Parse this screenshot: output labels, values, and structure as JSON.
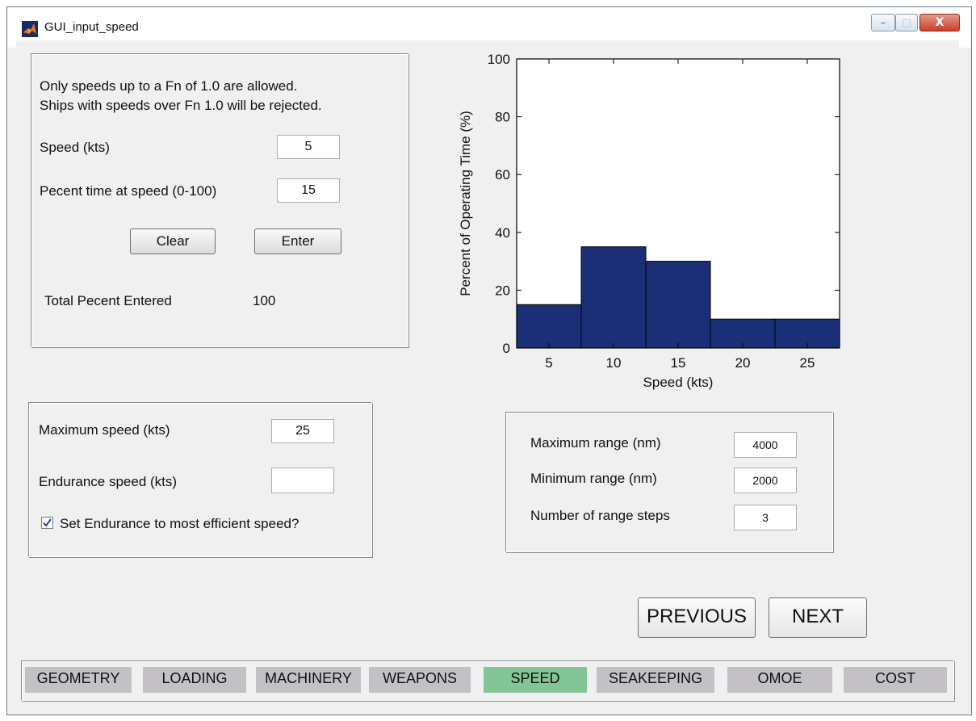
{
  "window": {
    "title": "GUI_input_speed",
    "min_glyph": "–",
    "max_glyph": "□",
    "close_glyph": "X"
  },
  "speed_panel": {
    "info_line1": "Only speeds up to a Fn of 1.0 are allowed.",
    "info_line2": "Ships with speeds over Fn 1.0 will be rejected.",
    "speed_label": "Speed (kts)",
    "speed_value": "5",
    "percent_label": "Pecent time at speed (0-100)",
    "percent_value": "15",
    "clear_label": "Clear",
    "enter_label": "Enter",
    "total_label": "Total Pecent Entered",
    "total_value": "100"
  },
  "endurance_panel": {
    "max_speed_label": "Maximum speed (kts)",
    "max_speed_value": "25",
    "endurance_label": "Endurance speed (kts)",
    "endurance_value": "",
    "checkbox_label": "Set Endurance to most efficient speed?",
    "checkbox_checked": true
  },
  "range_panel": {
    "max_range_label": "Maximum range (nm)",
    "max_range_value": "4000",
    "min_range_label": "Minimum range (nm)",
    "min_range_value": "2000",
    "steps_label": "Number of range steps",
    "steps_value": "3"
  },
  "nav": {
    "previous_label": "PREVIOUS",
    "next_label": "NEXT"
  },
  "tabs": [
    {
      "label": "GEOMETRY",
      "active": false
    },
    {
      "label": "LOADING",
      "active": false
    },
    {
      "label": "MACHINERY",
      "active": false
    },
    {
      "label": "WEAPONS",
      "active": false
    },
    {
      "label": "SPEED",
      "active": true
    },
    {
      "label": "SEAKEEPING",
      "active": false
    },
    {
      "label": "OMOE",
      "active": false
    },
    {
      "label": "COST",
      "active": false
    }
  ],
  "colors": {
    "bar_fill": "#1b2f77",
    "active_tab": "#83c596",
    "inactive_tab": "#c3c0c6"
  },
  "chart_data": {
    "type": "bar",
    "x": [
      5,
      10,
      15,
      20,
      25
    ],
    "values": [
      15,
      35,
      30,
      10,
      10
    ],
    "xlabel": "Speed (kts)",
    "ylabel": "Percent of Operating Time (%)",
    "xlim": [
      2.5,
      27.5
    ],
    "ylim": [
      0,
      100
    ],
    "xticks": [
      5,
      10,
      15,
      20,
      25
    ],
    "yticks": [
      0,
      20,
      40,
      60,
      80,
      100
    ],
    "grid": false,
    "title": ""
  }
}
